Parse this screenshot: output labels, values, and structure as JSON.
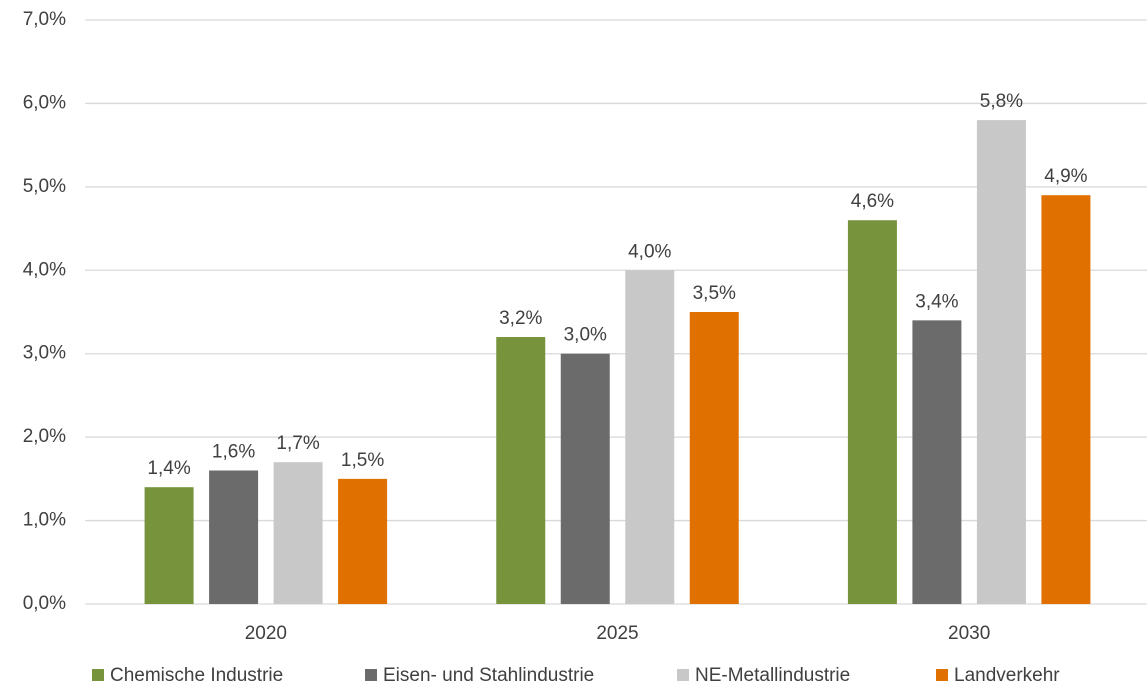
{
  "chart_data": {
    "type": "bar",
    "categories": [
      "2020",
      "2025",
      "2030"
    ],
    "series": [
      {
        "name": "Chemische Industrie",
        "color": "#77933c",
        "values": [
          1.4,
          3.2,
          4.6
        ],
        "value_labels": [
          "1,4%",
          "3,2%",
          "4,6%"
        ]
      },
      {
        "name": "Eisen- und Stahlindustrie",
        "color": "#6b6b6b",
        "values": [
          1.6,
          3.0,
          3.4
        ],
        "value_labels": [
          "1,6%",
          "3,0%",
          "3,4%"
        ]
      },
      {
        "name": "NE-Metallindustrie",
        "color": "#c8c8c8",
        "values": [
          1.7,
          4.0,
          5.8
        ],
        "value_labels": [
          "1,7%",
          "4,0%",
          "5,8%"
        ]
      },
      {
        "name": "Landverkehr",
        "color": "#e07000",
        "values": [
          1.5,
          3.5,
          4.9
        ],
        "value_labels": [
          "1,5%",
          "3,5%",
          "4,9%"
        ]
      }
    ],
    "ylim": [
      0,
      7
    ],
    "yticks": [
      {
        "value": 0,
        "label": "0,0%"
      },
      {
        "value": 1,
        "label": "1,0%"
      },
      {
        "value": 2,
        "label": "2,0%"
      },
      {
        "value": 3,
        "label": "3,0%"
      },
      {
        "value": 4,
        "label": "4,0%"
      },
      {
        "value": 5,
        "label": "5,0%"
      },
      {
        "value": 6,
        "label": "6,0%"
      },
      {
        "value": 7,
        "label": "7,0%"
      }
    ],
    "grid": true,
    "legend": "bottom"
  }
}
